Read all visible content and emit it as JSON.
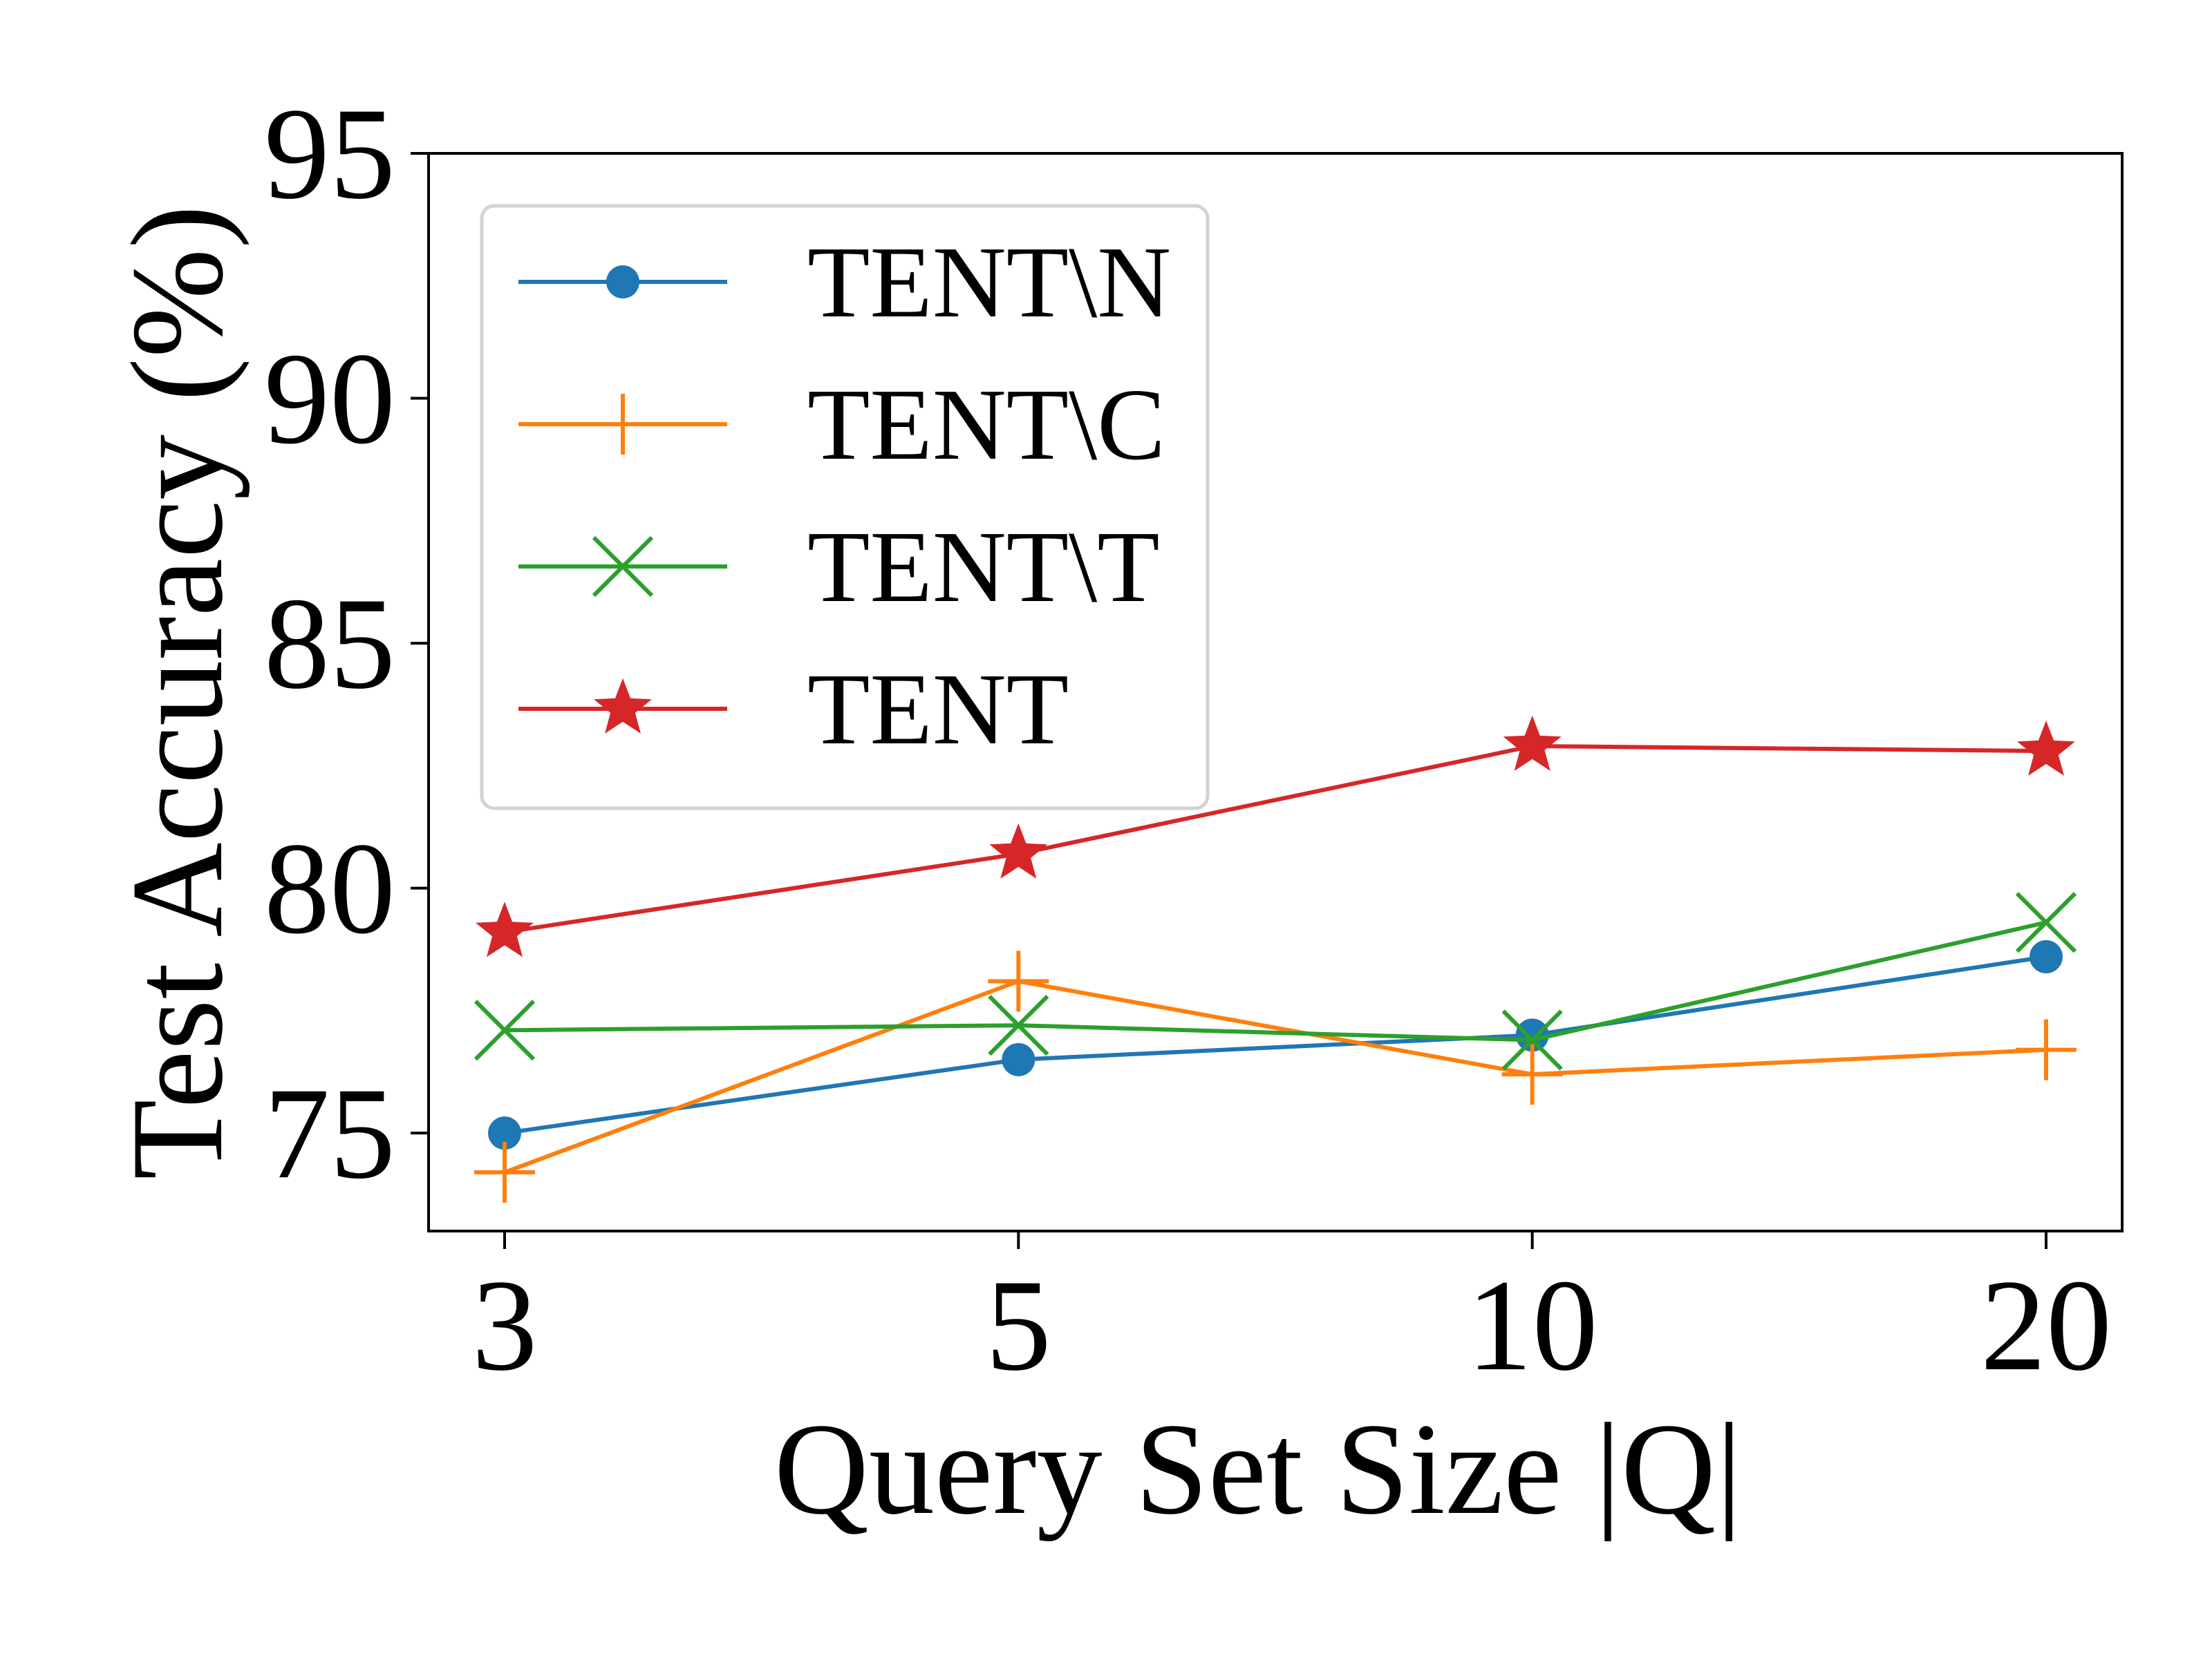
{
  "chart_data": {
    "type": "line",
    "x": [
      "3",
      "5",
      "10",
      "20"
    ],
    "xlabel": "Query Set Size |Q|",
    "ylabel": "Test Accuracy (%)",
    "ylim": [
      73,
      95
    ],
    "yticks": [
      "75",
      "80",
      "85",
      "90",
      "95"
    ],
    "grid": false,
    "legend_position": "upper-left",
    "series": [
      {
        "name": "TENT\\N",
        "color": "#1f77b4",
        "marker": "circle",
        "values": [
          75.0,
          76.5,
          77.0,
          78.6
        ]
      },
      {
        "name": "TENT\\C",
        "color": "#ff7f0e",
        "marker": "plus",
        "values": [
          74.2,
          78.1,
          76.2,
          76.7
        ]
      },
      {
        "name": "TENT\\T",
        "color": "#2ca02c",
        "marker": "x",
        "values": [
          77.1,
          77.2,
          76.9,
          79.3
        ]
      },
      {
        "name": "TENT",
        "color": "#d62728",
        "marker": "star",
        "values": [
          79.1,
          80.7,
          82.9,
          82.8
        ]
      }
    ]
  }
}
